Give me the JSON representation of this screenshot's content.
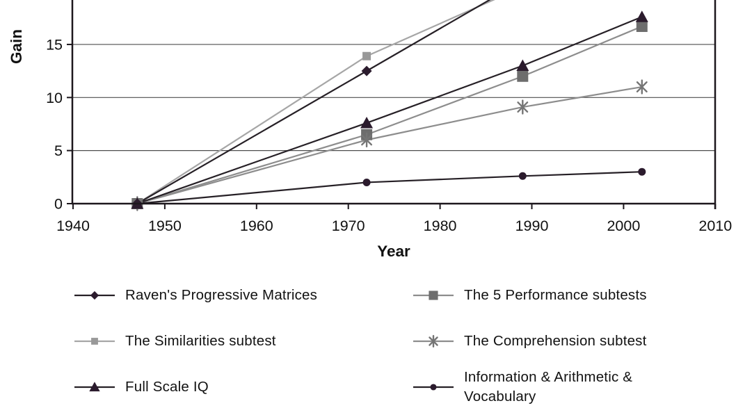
{
  "chart_data": {
    "type": "line",
    "title": "",
    "xlabel": "Year",
    "ylabel": "Gain",
    "x_axis": {
      "ticks": [
        1940,
        1950,
        1960,
        1970,
        1980,
        1990,
        2000,
        2010
      ],
      "range": [
        1940,
        2010
      ]
    },
    "y_axis": {
      "ticks": [
        0,
        5,
        10,
        15
      ],
      "visible_range": [
        0,
        19.2
      ],
      "note": "plot cropped at top edge; two series lines exit above the visible area"
    },
    "grid": true,
    "axis_color": "#1c171c",
    "gridline_color": "#4d4d4d",
    "text_color": "#111111",
    "series": [
      {
        "name": "Raven's Progressive Matrices",
        "marker": "diamond",
        "marker_color": "#2b1b2d",
        "line_color": "#262026",
        "marker_size": 15,
        "points": [
          [
            1947,
            0
          ],
          [
            1972,
            12.5
          ]
        ],
        "continues_offscreen_to": [
          1990,
          21.5
        ]
      },
      {
        "name": "The 5 Performance subtests",
        "marker": "square",
        "marker_color": "#6d6d6d",
        "line_color": "#8d8d8d",
        "marker_size": 16,
        "points": [
          [
            1947,
            0
          ],
          [
            1972,
            6.5
          ],
          [
            1989,
            12.0
          ],
          [
            2002,
            16.7
          ]
        ]
      },
      {
        "name": "The Similarities subtest",
        "marker": "square",
        "marker_color": "#999999",
        "line_color": "#a6a6a6",
        "marker_size": 12,
        "points": [
          [
            1947,
            0
          ],
          [
            1972,
            13.9
          ]
        ],
        "continues_offscreen_to": [
          1990,
          20.8
        ]
      },
      {
        "name": "The Comprehension subtest",
        "marker": "asterisk",
        "marker_color": "#757575",
        "line_color": "#8d8d8d",
        "marker_size": 19,
        "points": [
          [
            1947,
            0
          ],
          [
            1972,
            6.0
          ],
          [
            1989,
            9.1
          ],
          [
            2002,
            11.0
          ]
        ]
      },
      {
        "name": "Full Scale IQ",
        "marker": "triangle",
        "marker_color": "#2b1b2d",
        "line_color": "#262026",
        "marker_size": 15,
        "points": [
          [
            1947,
            0
          ],
          [
            1972,
            7.6
          ],
          [
            1989,
            13.0
          ],
          [
            2002,
            17.6
          ]
        ]
      },
      {
        "name": "Information & Arithmetic & Vocabulary",
        "marker": "circle",
        "marker_color": "#2b1b2d",
        "line_color": "#262026",
        "marker_size": 11,
        "points": [
          [
            1947,
            0
          ],
          [
            1972,
            2.0
          ],
          [
            1989,
            2.6
          ],
          [
            2002,
            3.0
          ]
        ]
      }
    ],
    "legend": {
      "position": "bottom",
      "columns": [
        [
          0,
          2,
          4
        ],
        [
          1,
          3,
          5
        ]
      ]
    }
  }
}
